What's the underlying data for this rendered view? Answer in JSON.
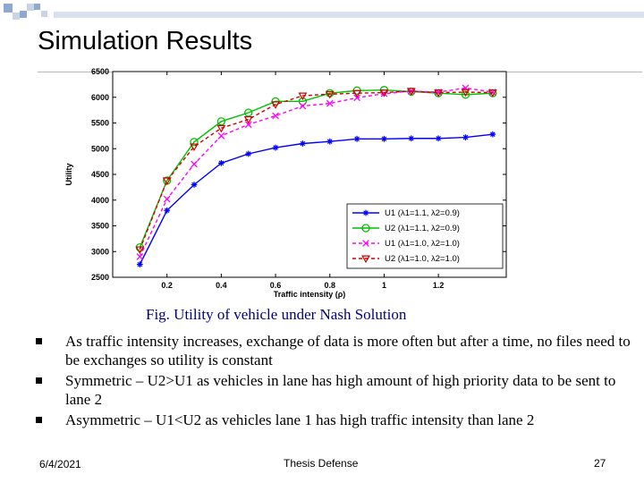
{
  "slide": {
    "title": "Simulation Results",
    "caption": "Fig. Utility of vehicle under Nash Solution",
    "bullets": [
      "As traffic intensity increases, exchange of data is more often but after a time, no files need to be exchanges so utility is constant",
      "Symmetric – U2>U1 as vehicles in lane has high amount of high priority data to be sent to lane 2",
      "Asymmetric – U1<U2 as vehicles lane 1 has high traffic intensity than lane 2"
    ],
    "bullet_icon": "square-bullet-icon",
    "decoration_icon": "corner-squares-decoration"
  },
  "footer": {
    "date": "6/4/2021",
    "center": "Thesis Defense",
    "page": "27"
  },
  "chart_data": {
    "type": "line",
    "xlabel": "Traffic intensity (ρ)",
    "ylabel": "Utility",
    "xlim": [
      0,
      1.45
    ],
    "ylim": [
      2500,
      6500
    ],
    "x_ticks": [
      "0.2",
      "0.4",
      "0.6",
      "0.8",
      "1",
      "1.2"
    ],
    "y_ticks": [
      "2500",
      "3000",
      "3500",
      "4000",
      "4500",
      "5000",
      "5500",
      "6000",
      "6500"
    ],
    "legend_position": "bottom-right",
    "x": [
      0.1,
      0.2,
      0.3,
      0.4,
      0.5,
      0.6,
      0.7,
      0.8,
      0.9,
      1.0,
      1.1,
      1.2,
      1.3,
      1.4
    ],
    "series": [
      {
        "name": "U1 (λ1=1.1, λ2=0.9)",
        "color": "#0000ff",
        "marker": "star",
        "dash": "solid",
        "values": [
          2750,
          3800,
          4300,
          4720,
          4900,
          5020,
          5100,
          5140,
          5190,
          5190,
          5200,
          5200,
          5220,
          5280
        ]
      },
      {
        "name": "U2 (λ1=1.1, λ2=0.9)",
        "color": "#00c000",
        "marker": "circle",
        "dash": "solid",
        "values": [
          3080,
          4380,
          5130,
          5530,
          5700,
          5920,
          5920,
          6080,
          6130,
          6140,
          6110,
          6080,
          6050,
          6080
        ]
      },
      {
        "name": "U1 (λ1=1.0, λ2=1.0)",
        "color": "#ff00ff",
        "marker": "x",
        "dash": "dashed",
        "values": [
          2900,
          4020,
          4700,
          5250,
          5470,
          5640,
          5830,
          5880,
          5990,
          6070,
          6120,
          6100,
          6180,
          6100
        ]
      },
      {
        "name": "U2 (λ1=1.0, λ2=1.0)",
        "color": "#cc0000",
        "marker": "triangle-down",
        "dash": "dashed",
        "values": [
          3040,
          4380,
          5040,
          5400,
          5570,
          5860,
          6030,
          6060,
          6080,
          6090,
          6120,
          6090,
          6100,
          6090
        ]
      }
    ]
  }
}
